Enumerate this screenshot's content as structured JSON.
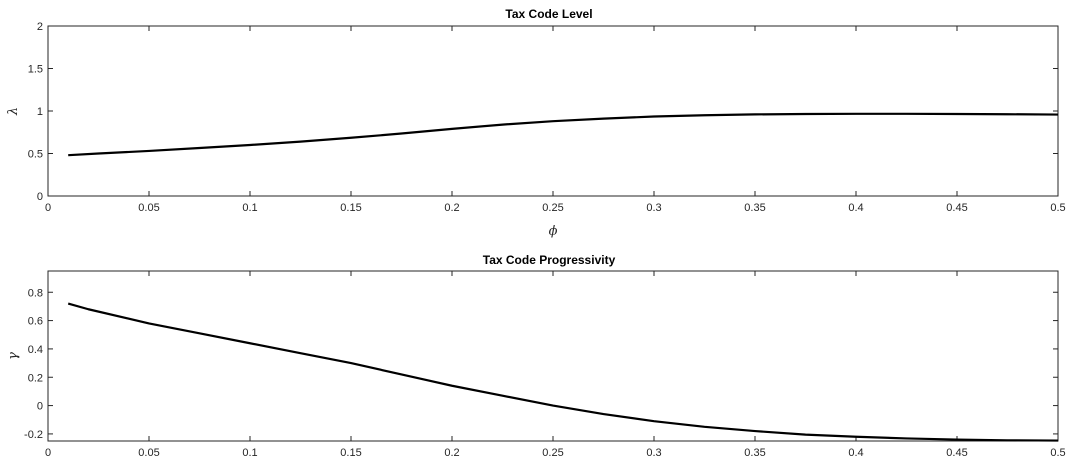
{
  "chart_data": [
    {
      "type": "line",
      "title": "Tax Code Level",
      "xlabel": "ϕ",
      "ylabel": "λ",
      "xlim": [
        0,
        0.5
      ],
      "ylim": [
        0,
        2
      ],
      "xticks": [
        0,
        0.05,
        0.1,
        0.15,
        0.2,
        0.25,
        0.3,
        0.35,
        0.4,
        0.45,
        0.5
      ],
      "xtick_labels": [
        "0",
        "0.05",
        "0.1",
        "0.15",
        "0.2",
        "0.25",
        "0.3",
        "0.35",
        "0.4",
        "0.45",
        "0.5"
      ],
      "yticks": [
        0,
        0.5,
        1,
        1.5,
        2
      ],
      "ytick_labels": [
        "0",
        "0.5",
        "1",
        "1.5",
        "2"
      ],
      "grid": false,
      "color": "#000000",
      "series": [
        {
          "x": [
            0.01,
            0.025,
            0.05,
            0.075,
            0.1,
            0.125,
            0.15,
            0.175,
            0.2,
            0.225,
            0.25,
            0.275,
            0.3,
            0.325,
            0.35,
            0.375,
            0.4,
            0.425,
            0.45,
            0.475,
            0.5
          ],
          "values": [
            0.48,
            0.5,
            0.53,
            0.565,
            0.6,
            0.64,
            0.685,
            0.735,
            0.79,
            0.84,
            0.88,
            0.91,
            0.935,
            0.95,
            0.96,
            0.965,
            0.967,
            0.967,
            0.965,
            0.962,
            0.958
          ]
        }
      ]
    },
    {
      "type": "line",
      "title": "Tax Code Progressivity",
      "xlabel": "",
      "ylabel": "γ",
      "xlim": [
        0,
        0.5
      ],
      "ylim": [
        -0.25,
        0.95
      ],
      "xticks": [
        0,
        0.05,
        0.1,
        0.15,
        0.2,
        0.25,
        0.3,
        0.35,
        0.4,
        0.45,
        0.5
      ],
      "xtick_labels": [
        "0",
        "0.05",
        "0.1",
        "0.15",
        "0.2",
        "0.25",
        "0.3",
        "0.35",
        "0.4",
        "0.45",
        "0.5"
      ],
      "yticks": [
        -0.2,
        0,
        0.2,
        0.4,
        0.6,
        0.8
      ],
      "ytick_labels": [
        "-0.2",
        "0",
        "0.2",
        "0.4",
        "0.6",
        "0.8"
      ],
      "grid": false,
      "color": "#000000",
      "series": [
        {
          "x": [
            0.01,
            0.02,
            0.05,
            0.075,
            0.1,
            0.125,
            0.15,
            0.175,
            0.2,
            0.225,
            0.25,
            0.275,
            0.3,
            0.325,
            0.35,
            0.375,
            0.4,
            0.425,
            0.45,
            0.475,
            0.5
          ],
          "values": [
            0.72,
            0.68,
            0.58,
            0.51,
            0.44,
            0.37,
            0.3,
            0.22,
            0.14,
            0.07,
            0.0,
            -0.06,
            -0.11,
            -0.15,
            -0.18,
            -0.205,
            -0.22,
            -0.232,
            -0.24,
            -0.245,
            -0.247
          ]
        }
      ]
    }
  ]
}
